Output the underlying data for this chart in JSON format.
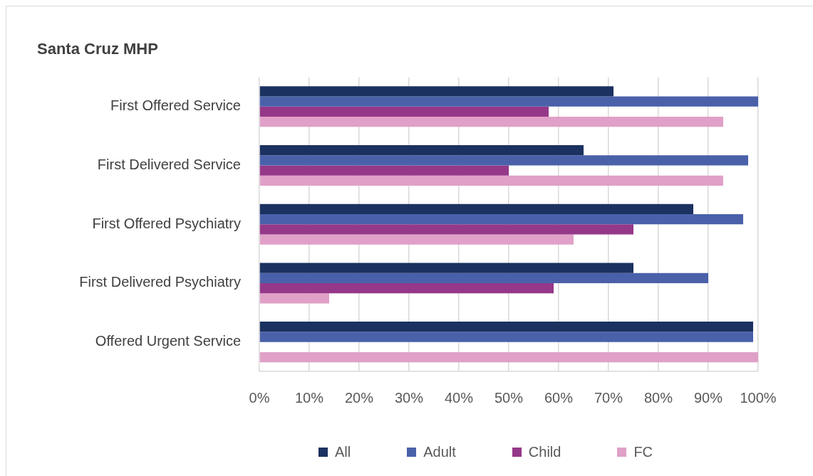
{
  "chart_data": {
    "type": "bar",
    "orientation": "horizontal",
    "title": "Santa Cruz MHP",
    "categories": [
      "First Offered Service",
      "First Delivered Service",
      "First Offered Psychiatry",
      "First Delivered Psychiatry",
      "Offered Urgent Service"
    ],
    "series": [
      {
        "name": "All",
        "color": "#1b3160",
        "values": [
          71,
          65,
          87,
          75,
          99
        ]
      },
      {
        "name": "Adult",
        "color": "#4a61aa",
        "values": [
          100,
          98,
          97,
          90,
          99
        ]
      },
      {
        "name": "Child",
        "color": "#963889",
        "values": [
          58,
          50,
          75,
          59,
          null
        ]
      },
      {
        "name": "FC",
        "color": "#e0a0c8",
        "values": [
          93,
          93,
          63,
          14,
          100
        ]
      }
    ],
    "xlim": [
      0,
      100
    ],
    "xticks": [
      {
        "value": 0,
        "label": "0%"
      },
      {
        "value": 10,
        "label": "10%"
      },
      {
        "value": 20,
        "label": "20%"
      },
      {
        "value": 30,
        "label": "30%"
      },
      {
        "value": 40,
        "label": "40%"
      },
      {
        "value": 50,
        "label": "50%"
      },
      {
        "value": 60,
        "label": "60%"
      },
      {
        "value": 70,
        "label": "70%"
      },
      {
        "value": 80,
        "label": "80%"
      },
      {
        "value": 90,
        "label": "90%"
      },
      {
        "value": 100,
        "label": "100%"
      }
    ],
    "grid": "x",
    "legend": "bottom"
  }
}
